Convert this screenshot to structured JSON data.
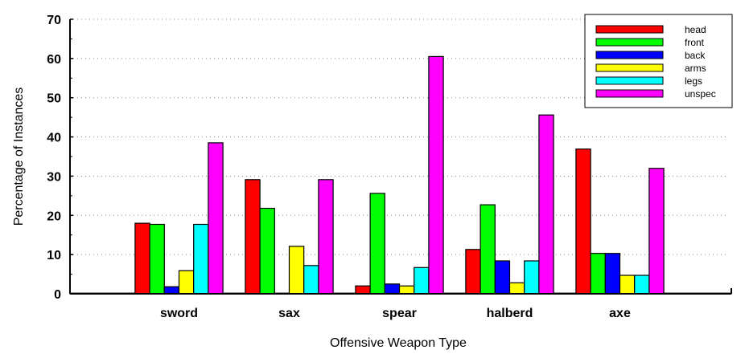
{
  "chart_data": {
    "type": "bar",
    "title": "",
    "xlabel": "Offensive Weapon Type",
    "ylabel": "Percentage of Instances",
    "ylim": [
      0,
      70
    ],
    "yticks": [
      "0",
      "10",
      "20",
      "30",
      "40",
      "50",
      "60",
      "70"
    ],
    "grid": true,
    "legend_position": "top-right",
    "categories": [
      "sword",
      "sax",
      "spear",
      "halberd",
      "axe"
    ],
    "series": [
      {
        "name": "head",
        "color": "#ff0000",
        "values": [
          18.0,
          29.1,
          2.0,
          11.3,
          36.9
        ]
      },
      {
        "name": "front",
        "color": "#00ff00",
        "values": [
          17.7,
          21.8,
          25.6,
          22.7,
          10.3
        ]
      },
      {
        "name": "back",
        "color": "#0000ff",
        "values": [
          1.8,
          0.0,
          2.5,
          8.4,
          10.3
        ]
      },
      {
        "name": "arms",
        "color": "#ffff00",
        "values": [
          5.9,
          12.1,
          2.0,
          2.8,
          4.7
        ]
      },
      {
        "name": "legs",
        "color": "#00ffff",
        "values": [
          17.7,
          7.2,
          6.7,
          8.4,
          4.7
        ]
      },
      {
        "name": "unspec",
        "color": "#ff00ff",
        "values": [
          38.5,
          29.1,
          60.5,
          45.6,
          32.0
        ]
      }
    ]
  }
}
